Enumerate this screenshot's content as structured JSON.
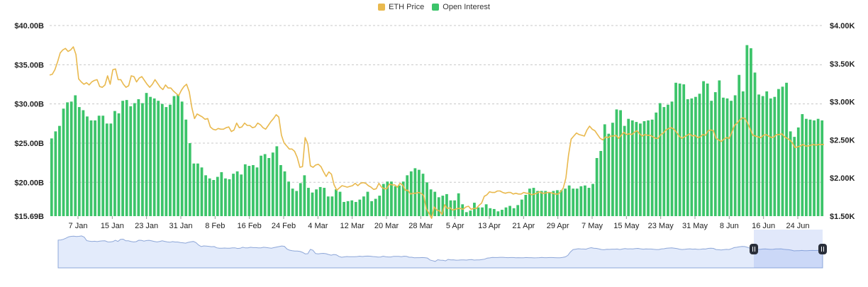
{
  "legend": {
    "items": [
      {
        "label": "ETH Price",
        "color": "#E9B94E"
      },
      {
        "label": "Open Interest",
        "color": "#3CC46A"
      }
    ]
  },
  "chart_data": {
    "type": "bar",
    "combo": "bar + line (dual axis)",
    "x_tick_labels": [
      "7 Jan",
      "15 Jan",
      "23 Jan",
      "31 Jan",
      "8 Feb",
      "16 Feb",
      "24 Feb",
      "4 Mar",
      "12 Mar",
      "20 Mar",
      "28 Mar",
      "5 Apr",
      "13 Apr",
      "21 Apr",
      "29 Apr",
      "7 May",
      "15 May",
      "23 May",
      "31 May",
      "8 Jun",
      "16 Jun",
      "24 Jun"
    ],
    "left_axis": {
      "ticks": [
        "$15.69B",
        "$20.00B",
        "$25.00B",
        "$30.00B",
        "$35.00B",
        "$40.00B"
      ],
      "ylim": [
        15.69,
        40.0
      ],
      "unit": "B USD"
    },
    "right_axis": {
      "ticks": [
        "$1.50K",
        "$2.00K",
        "$2.50K",
        "$3.00K",
        "$3.50K",
        "$4.00K"
      ],
      "ylim": [
        1500,
        4000
      ],
      "unit": "USD"
    },
    "grid": "horizontal dashed",
    "legend_position": "top-center",
    "series": [
      {
        "name": "Open Interest",
        "type": "bar",
        "axis": "left",
        "color": "#3CC46A",
        "values": [
          25.6,
          26.5,
          27.2,
          29.4,
          30.2,
          30.3,
          31.1,
          29.6,
          29.2,
          28.4,
          27.9,
          27.9,
          28.5,
          28.5,
          27.5,
          27.5,
          29.1,
          28.8,
          30.4,
          30.5,
          29.7,
          30.1,
          30.6,
          30.1,
          31.4,
          30.9,
          30.7,
          30.4,
          30.0,
          29.6,
          29.9,
          31.0,
          31.2,
          30.3,
          28.0,
          25.0,
          22.4,
          22.4,
          21.9,
          20.9,
          20.5,
          20.3,
          20.7,
          21.3,
          20.5,
          20.4,
          21.1,
          21.4,
          21.0,
          22.3,
          22.1,
          22.2,
          21.9,
          23.4,
          23.6,
          23.1,
          23.8,
          24.6,
          22.2,
          21.4,
          20.1,
          19.2,
          18.9,
          19.9,
          20.9,
          19.3,
          18.7,
          19.1,
          19.4,
          19.3,
          18.2,
          18.2,
          19.1,
          18.8,
          17.5,
          17.6,
          17.7,
          17.5,
          17.8,
          18.2,
          18.8,
          17.6,
          17.9,
          18.3,
          19.8,
          20.1,
          20.1,
          19.5,
          19.6,
          20.1,
          20.9,
          21.4,
          21.8,
          21.6,
          21.1,
          20.0,
          19.1,
          18.8,
          18.1,
          18.3,
          18.5,
          17.7,
          17.7,
          18.6,
          17.2,
          16.2,
          16.4,
          17.4,
          16.8,
          16.8,
          17.2,
          16.7,
          16.6,
          16.3,
          16.5,
          16.8,
          17.0,
          16.7,
          17.1,
          17.8,
          18.4,
          19.2,
          19.3,
          18.9,
          18.9,
          18.9,
          18.7,
          18.9,
          19.0,
          19.0,
          19.2,
          19.6,
          19.2,
          19.2,
          19.5,
          19.6,
          19.3,
          19.8,
          23.1,
          24.0,
          27.4,
          26.2,
          27.6,
          29.3,
          29.2,
          27.2,
          28.1,
          27.9,
          27.7,
          27.5,
          27.8,
          27.9,
          28.0,
          28.9,
          30.1,
          29.6,
          29.9,
          30.3,
          32.7,
          32.6,
          32.5,
          30.6,
          30.7,
          30.9,
          31.3,
          32.9,
          32.6,
          30.4,
          31.5,
          33.0,
          30.8,
          30.7,
          30.4,
          31.1,
          33.7,
          31.6,
          37.5,
          37.1,
          34.0,
          31.2,
          31.0,
          31.6,
          30.7,
          30.9,
          31.9,
          32.2,
          32.7,
          26.5,
          25.8,
          27.0,
          28.7,
          28.1,
          28.0,
          27.9,
          28.1,
          27.9
        ]
      },
      {
        "name": "ETH Price",
        "type": "line",
        "axis": "right",
        "color": "#E9B94E",
        "values": [
          3350,
          3360,
          3420,
          3520,
          3640,
          3680,
          3700,
          3660,
          3680,
          3720,
          3620,
          3300,
          3260,
          3230,
          3250,
          3220,
          3260,
          3280,
          3290,
          3200,
          3190,
          3220,
          3340,
          3230,
          3420,
          3430,
          3290,
          3290,
          3230,
          3190,
          3210,
          3340,
          3330,
          3260,
          3310,
          3330,
          3280,
          3230,
          3190,
          3230,
          3290,
          3240,
          3190,
          3160,
          3220,
          3180,
          3180,
          3140,
          3110,
          3080,
          3150,
          3200,
          3230,
          3130,
          2920,
          2780,
          2840,
          2820,
          2800,
          2770,
          2780,
          2670,
          2640,
          2630,
          2650,
          2640,
          2640,
          2660,
          2670,
          2610,
          2630,
          2720,
          2660,
          2670,
          2720,
          2690,
          2690,
          2660,
          2670,
          2720,
          2700,
          2660,
          2640,
          2690,
          2740,
          2780,
          2830,
          2800,
          2560,
          2460,
          2420,
          2380,
          2380,
          2350,
          2270,
          2140,
          2150,
          2530,
          2450,
          2160,
          2140,
          2170,
          2180,
          2150,
          2080,
          2020,
          2080,
          2050,
          1910,
          1840,
          1870,
          1900,
          1890,
          1880,
          1890,
          1900,
          1930,
          1900,
          1930,
          1940,
          1930,
          1900,
          1880,
          1850,
          1860,
          1930,
          1880,
          1860,
          1860,
          1920,
          1910,
          1910,
          1880,
          1930,
          1910,
          1840,
          1840,
          1790,
          1800,
          1800,
          1810,
          1800,
          1770,
          1600,
          1540,
          1470,
          1620,
          1580,
          1570,
          1520,
          1650,
          1600,
          1610,
          1580,
          1590,
          1600,
          1600,
          1590,
          1620,
          1630,
          1590,
          1600,
          1600,
          1640,
          1670,
          1760,
          1780,
          1820,
          1810,
          1810,
          1830,
          1830,
          1810,
          1800,
          1810,
          1810,
          1790,
          1800,
          1790,
          1790,
          1810,
          1800,
          1800,
          1780,
          1790,
          1800,
          1820,
          1800,
          1800,
          1810,
          1810,
          1800,
          1790,
          1790,
          1820,
          1870,
          2000,
          2300,
          2510,
          2550,
          2590,
          2570,
          2560,
          2550,
          2630,
          2680,
          2640,
          2620,
          2570,
          2520,
          2500,
          2540,
          2530,
          2550,
          2550,
          2560,
          2520,
          2560,
          2600,
          2570,
          2580,
          2570,
          2600,
          2620,
          2580,
          2550,
          2570,
          2560,
          2560,
          2540,
          2520,
          2520,
          2570,
          2590,
          2630,
          2650,
          2660,
          2640,
          2600,
          2550,
          2520,
          2540,
          2560,
          2580,
          2550,
          2560,
          2530,
          2540,
          2570,
          2560,
          2620,
          2630,
          2620,
          2520,
          2500,
          2480,
          2510,
          2530,
          2520,
          2600,
          2690,
          2720,
          2760,
          2790,
          2780,
          2720,
          2640,
          2560,
          2550,
          2540,
          2530,
          2560,
          2570,
          2550,
          2530,
          2540,
          2570,
          2570,
          2580,
          2540,
          2520,
          2500,
          2460,
          2400,
          2410,
          2420,
          2440,
          2420,
          2420,
          2430,
          2440,
          2430,
          2440,
          2440,
          2440
        ]
      }
    ]
  }
}
